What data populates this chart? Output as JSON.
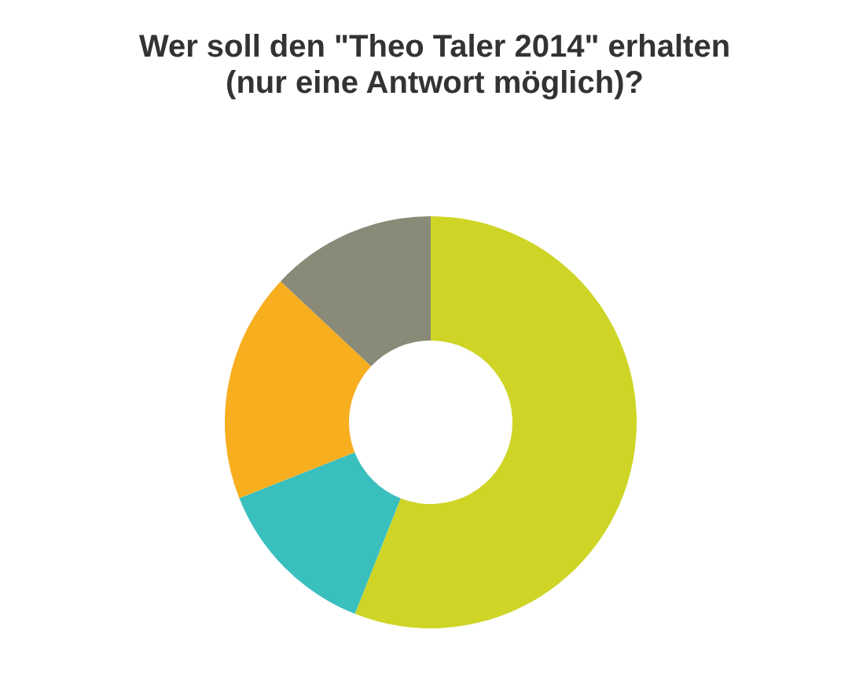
{
  "chart_data": {
    "type": "donut",
    "title": "Wer soll den \"Theo Taler 2014\" erhalten\n(nur eine Antwort möglich)?",
    "categories": [
      null,
      null,
      null,
      null
    ],
    "values": [
      56,
      13,
      18,
      13
    ],
    "colors": [
      "#ced526",
      "#3abfbf",
      "#f7ae1f",
      "#8a8a78"
    ]
  }
}
